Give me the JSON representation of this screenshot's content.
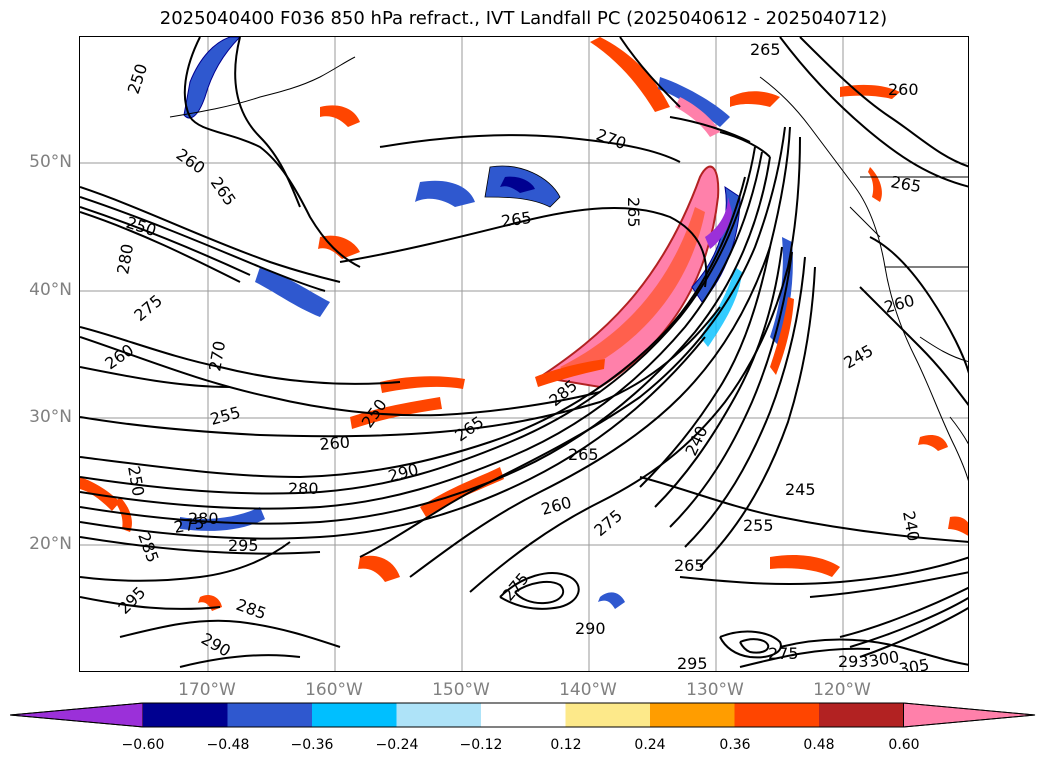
{
  "title": "2025040400 F036 850 hPa refract., IVT Landfall PC (2025040612 - 2025040712)",
  "map": {
    "lat_labels": [
      "50°N",
      "40°N",
      "30°N",
      "20°N"
    ],
    "lon_labels": [
      "170°W",
      "160°W",
      "150°W",
      "140°W",
      "130°W",
      "120°W"
    ],
    "contour_labels": [
      "250",
      "260",
      "265",
      "250",
      "280",
      "275",
      "260",
      "270",
      "255",
      "250",
      "260",
      "250",
      "265",
      "280",
      "290",
      "295",
      "280",
      "275",
      "285",
      "295",
      "285",
      "290",
      "270",
      "265",
      "265",
      "285",
      "265",
      "240",
      "260",
      "245",
      "255",
      "275",
      "265",
      "275",
      "290",
      "295",
      "275",
      "293",
      "300",
      "305",
      "265",
      "260",
      "265",
      "260",
      "245",
      "240"
    ]
  },
  "colorbar": {
    "ticks": [
      "−0.60",
      "−0.48",
      "−0.36",
      "−0.24",
      "−0.12",
      "0.12",
      "0.24",
      "0.36",
      "0.48",
      "0.60"
    ],
    "colors": [
      "#9b30d9",
      "#000090",
      "#2f58cf",
      "#00bfff",
      "#aee3f8",
      "#ffffff",
      "#fde98a",
      "#ff9d00",
      "#ff4500",
      "#b22222",
      "#ff80aa"
    ]
  }
}
